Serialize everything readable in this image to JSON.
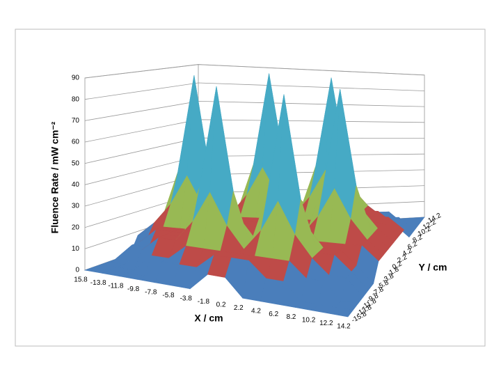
{
  "chart_data": {
    "type": "surface",
    "z_title": "Fluence Rate /  mW cm⁻²",
    "x_title": "X / cm",
    "y_title": "Y / cm",
    "x_categories": [
      "15.8",
      "-13.8",
      "-11.8",
      "-9.8",
      "-7.8",
      "-5.8",
      "-3.8",
      "-1.8",
      "0.2",
      "2.2",
      "4.2",
      "6.2",
      "8.2",
      "10.2",
      "12.2",
      "14.2"
    ],
    "y_categories": [
      "14.2",
      "12.2",
      "10.2",
      "8.2",
      "6.2",
      "4.2",
      "2.2",
      "0.2",
      "-1.8",
      "-3.8",
      "-5.8",
      "-7.8",
      "-9.8",
      "-11.8",
      "-13.8",
      "-15.8"
    ],
    "zlim": [
      0,
      90
    ],
    "zticks": [
      0,
      10,
      20,
      30,
      40,
      50,
      60,
      70,
      80,
      90
    ],
    "band_colors": [
      "#4a7ebb",
      "#be4b48",
      "#98b954",
      "#7d60a0",
      "#46aac5",
      "#f79646",
      "#8fa9d6",
      "#d99795",
      "#b7d590"
    ],
    "grid": true,
    "z": [
      [
        0,
        0,
        0,
        0,
        0,
        8,
        8,
        8,
        8,
        8,
        8,
        8,
        0,
        0,
        0,
        0
      ],
      [
        0,
        0,
        0,
        8,
        8,
        15,
        15,
        15,
        15,
        15,
        15,
        15,
        8,
        8,
        0,
        0
      ],
      [
        0,
        0,
        8,
        8,
        15,
        25,
        40,
        25,
        15,
        25,
        40,
        25,
        15,
        8,
        8,
        0
      ],
      [
        0,
        0,
        8,
        15,
        15,
        40,
        90,
        40,
        15,
        40,
        90,
        40,
        15,
        15,
        8,
        0
      ],
      [
        0,
        8,
        15,
        15,
        15,
        25,
        40,
        25,
        15,
        25,
        40,
        25,
        15,
        15,
        15,
        8
      ],
      [
        0,
        8,
        15,
        15,
        15,
        15,
        15,
        15,
        15,
        15,
        15,
        15,
        15,
        15,
        15,
        8
      ],
      [
        8,
        15,
        25,
        40,
        25,
        15,
        15,
        15,
        15,
        15,
        15,
        25,
        40,
        25,
        15,
        8
      ],
      [
        8,
        15,
        40,
        90,
        40,
        15,
        15,
        15,
        15,
        15,
        15,
        40,
        90,
        40,
        15,
        8
      ],
      [
        8,
        15,
        25,
        40,
        25,
        15,
        15,
        15,
        15,
        15,
        15,
        25,
        40,
        25,
        15,
        8
      ],
      [
        0,
        8,
        15,
        15,
        15,
        15,
        15,
        15,
        15,
        15,
        15,
        15,
        15,
        15,
        15,
        8
      ],
      [
        0,
        8,
        15,
        15,
        15,
        25,
        40,
        25,
        15,
        25,
        40,
        25,
        15,
        15,
        8,
        0
      ],
      [
        0,
        8,
        8,
        15,
        15,
        40,
        90,
        40,
        15,
        40,
        90,
        40,
        15,
        15,
        8,
        0
      ],
      [
        0,
        0,
        8,
        15,
        15,
        25,
        40,
        25,
        15,
        25,
        40,
        25,
        15,
        8,
        8,
        0
      ],
      [
        0,
        0,
        0,
        8,
        8,
        15,
        15,
        15,
        15,
        15,
        15,
        15,
        8,
        8,
        0,
        0
      ],
      [
        0,
        0,
        0,
        0,
        8,
        8,
        8,
        15,
        15,
        15,
        8,
        8,
        0,
        0,
        0,
        0
      ],
      [
        0,
        0,
        0,
        0,
        0,
        0,
        0,
        8,
        8,
        0,
        0,
        0,
        0,
        0,
        0,
        0
      ]
    ]
  }
}
